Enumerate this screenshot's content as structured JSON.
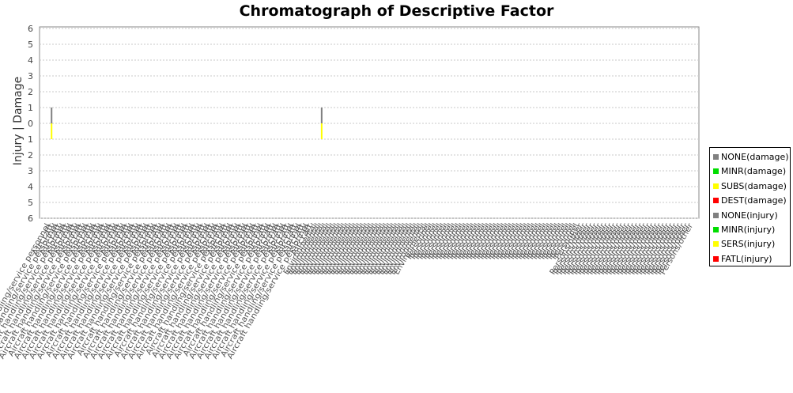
{
  "chart_data": {
    "type": "bar",
    "title": "Chromatograph of Descriptive Factor",
    "ylabel": "Injury | Damage",
    "xlabel": "",
    "y_ticks": [
      "6",
      "5",
      "4",
      "3",
      "2",
      "1",
      "0",
      "1",
      "2",
      "3",
      "4",
      "5",
      "6"
    ],
    "ylim": [
      -6,
      6
    ],
    "grid": true,
    "legend_position": "right",
    "legend": [
      {
        "label": "NONE(damage)",
        "color": "#808080"
      },
      {
        "label": "MINR(damage)",
        "color": "#00dd00"
      },
      {
        "label": "SUBS(damage)",
        "color": "#ffff00"
      },
      {
        "label": "DEST(damage)",
        "color": "#ff0000"
      },
      {
        "label": "NONE(injury)",
        "color": "#808080"
      },
      {
        "label": "MINR(injury)",
        "color": "#00dd00"
      },
      {
        "label": "SERS(injury)",
        "color": "#ffff00"
      },
      {
        "label": "FATL(injury)",
        "color": "#ff0000"
      }
    ],
    "category_count": 170,
    "bars": [
      {
        "category_index": 1,
        "damage": {
          "category": "NONE(damage)",
          "value": 1
        },
        "injury": {
          "category": "SERS(injury)",
          "value": 1
        }
      },
      {
        "category_index": 72,
        "damage": {
          "category": "NONE(damage)",
          "value": 1
        },
        "injury": {
          "category": "SERS(injury)",
          "value": 1
        }
      }
    ],
    "x_tick_labels_visible": [
      "Aircraft handling/service personnel",
      "Aircraft",
      "Environmental",
      "Personnel",
      "Persons/other"
    ]
  }
}
